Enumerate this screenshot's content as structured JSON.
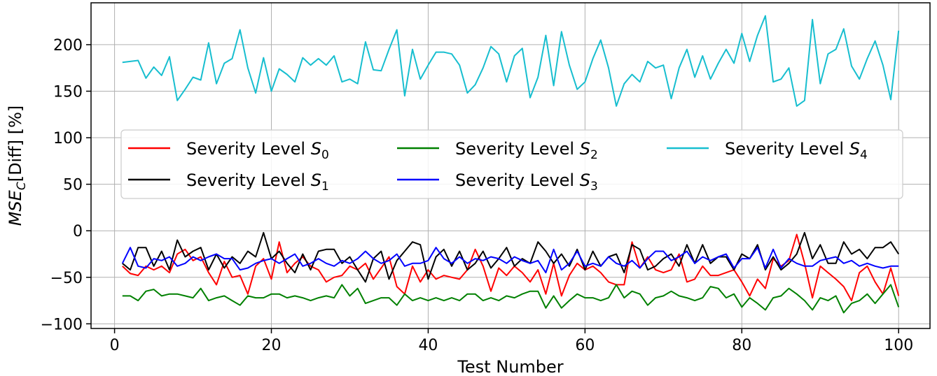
{
  "chart_data": {
    "type": "line",
    "title": "",
    "xlabel": "Test Number",
    "ylabel": {
      "base": "MSE",
      "subscript": "C",
      "suffix": "[Diff] [%]"
    },
    "xlim": [
      -3,
      104
    ],
    "ylim": [
      -105,
      245
    ],
    "xticks": [
      0,
      20,
      40,
      60,
      80,
      100
    ],
    "yticks": [
      -100,
      -50,
      0,
      50,
      100,
      150,
      200
    ],
    "x_tick_labels": [
      "0",
      "20",
      "40",
      "60",
      "80",
      "100"
    ],
    "y_tick_labels": [
      "−100",
      "−50",
      "0",
      "50",
      "100",
      "150",
      "200"
    ],
    "grid": true,
    "legend_position": "upper-middle",
    "x": [
      1,
      2,
      3,
      4,
      5,
      6,
      7,
      8,
      9,
      10,
      11,
      12,
      13,
      14,
      15,
      16,
      17,
      18,
      19,
      20,
      21,
      22,
      23,
      24,
      25,
      26,
      27,
      28,
      29,
      30,
      31,
      32,
      33,
      34,
      35,
      36,
      37,
      38,
      39,
      40,
      41,
      42,
      43,
      44,
      45,
      46,
      47,
      48,
      49,
      50,
      51,
      52,
      53,
      54,
      55,
      56,
      57,
      58,
      59,
      60,
      61,
      62,
      63,
      64,
      65,
      66,
      67,
      68,
      69,
      70,
      71,
      72,
      73,
      74,
      75,
      76,
      77,
      78,
      79,
      80,
      81,
      82,
      83,
      84,
      85,
      86,
      87,
      88,
      89,
      90,
      91,
      92,
      93,
      94,
      95,
      96,
      97,
      98,
      99,
      100
    ],
    "series": [
      {
        "name": "Severity Level",
        "subscript": "0",
        "color": "#ff0000",
        "values": [
          -38,
          -46,
          -48,
          -38,
          -42,
          -38,
          -45,
          -25,
          -20,
          -32,
          -28,
          -45,
          -58,
          -33,
          -50,
          -48,
          -68,
          -38,
          -30,
          -52,
          -12,
          -45,
          -35,
          -28,
          -38,
          -42,
          -55,
          -50,
          -48,
          -38,
          -42,
          -35,
          -52,
          -40,
          -28,
          -60,
          -68,
          -38,
          -55,
          -42,
          -52,
          -48,
          -50,
          -52,
          -42,
          -20,
          -38,
          -65,
          -40,
          -48,
          -38,
          -45,
          -55,
          -42,
          -68,
          -35,
          -70,
          -48,
          -35,
          -42,
          -38,
          -45,
          -55,
          -58,
          -58,
          -12,
          -40,
          -28,
          -42,
          -45,
          -42,
          -25,
          -55,
          -52,
          -38,
          -48,
          -48,
          -45,
          -42,
          -55,
          -70,
          -52,
          -62,
          -30,
          -38,
          -32,
          -4,
          -35,
          -72,
          -38,
          -45,
          -52,
          -60,
          -75,
          -45,
          -38,
          -55,
          -68,
          -40,
          -70
        ]
      },
      {
        "name": "Severity Level",
        "subscript": "1",
        "color": "#000000",
        "values": [
          -35,
          -42,
          -18,
          -18,
          -38,
          -22,
          -42,
          -10,
          -28,
          -22,
          -18,
          -42,
          -25,
          -40,
          -28,
          -35,
          -22,
          -28,
          -2,
          -30,
          -22,
          -35,
          -45,
          -25,
          -42,
          -22,
          -20,
          -20,
          -35,
          -28,
          -42,
          -55,
          -30,
          -22,
          -52,
          -32,
          -22,
          -12,
          -15,
          -52,
          -28,
          -20,
          -38,
          -22,
          -42,
          -35,
          -22,
          -40,
          -30,
          -18,
          -38,
          -30,
          -35,
          -12,
          -22,
          -35,
          -25,
          -38,
          -20,
          -42,
          -22,
          -38,
          -28,
          -25,
          -45,
          -15,
          -20,
          -42,
          -38,
          -30,
          -25,
          -38,
          -15,
          -35,
          -15,
          -35,
          -28,
          -28,
          -42,
          -25,
          -30,
          -15,
          -42,
          -28,
          -42,
          -35,
          -25,
          -2,
          -30,
          -15,
          -35,
          -35,
          -12,
          -25,
          -20,
          -30,
          -18,
          -18,
          -12,
          -25
        ]
      },
      {
        "name": "Severity Level",
        "subscript": "2",
        "color": "#008000",
        "values": [
          -70,
          -70,
          -75,
          -65,
          -63,
          -70,
          -68,
          -68,
          -70,
          -72,
          -62,
          -75,
          -72,
          -70,
          -75,
          -80,
          -70,
          -72,
          -72,
          -68,
          -68,
          -72,
          -70,
          -72,
          -75,
          -72,
          -70,
          -72,
          -58,
          -70,
          -62,
          -78,
          -75,
          -72,
          -72,
          -80,
          -68,
          -75,
          -72,
          -75,
          -72,
          -75,
          -72,
          -75,
          -68,
          -68,
          -75,
          -72,
          -75,
          -70,
          -72,
          -68,
          -65,
          -65,
          -83,
          -70,
          -83,
          -75,
          -68,
          -72,
          -72,
          -75,
          -72,
          -58,
          -72,
          -65,
          -68,
          -80,
          -72,
          -70,
          -65,
          -70,
          -72,
          -75,
          -72,
          -60,
          -62,
          -72,
          -68,
          -82,
          -72,
          -78,
          -85,
          -72,
          -70,
          -62,
          -68,
          -75,
          -85,
          -72,
          -75,
          -70,
          -88,
          -78,
          -75,
          -68,
          -78,
          -68,
          -58,
          -82
        ]
      },
      {
        "name": "Severity Level",
        "subscript": "3",
        "color": "#0000ff",
        "values": [
          -35,
          -18,
          -38,
          -40,
          -30,
          -32,
          -28,
          -38,
          -35,
          -28,
          -32,
          -28,
          -25,
          -30,
          -30,
          -42,
          -40,
          -35,
          -32,
          -30,
          -35,
          -30,
          -25,
          -38,
          -35,
          -30,
          -35,
          -38,
          -32,
          -35,
          -30,
          -22,
          -30,
          -35,
          -32,
          -25,
          -38,
          -35,
          -35,
          -32,
          -18,
          -30,
          -35,
          -28,
          -35,
          -30,
          -32,
          -28,
          -30,
          -35,
          -28,
          -32,
          -35,
          -32,
          -45,
          -20,
          -42,
          -35,
          -22,
          -38,
          -35,
          -38,
          -28,
          -35,
          -38,
          -32,
          -40,
          -30,
          -22,
          -22,
          -32,
          -28,
          -22,
          -35,
          -28,
          -32,
          -28,
          -25,
          -40,
          -30,
          -30,
          -18,
          -40,
          -20,
          -40,
          -30,
          -35,
          -38,
          -38,
          -32,
          -30,
          -28,
          -35,
          -32,
          -38,
          -35,
          -38,
          -40,
          -38,
          -38
        ]
      },
      {
        "name": "Severity Level",
        "subscript": "4",
        "color": "#17becf",
        "values": [
          181,
          182,
          183,
          164,
          176,
          167,
          187,
          140,
          152,
          165,
          162,
          202,
          158,
          180,
          185,
          216,
          175,
          148,
          186,
          150,
          174,
          168,
          160,
          186,
          178,
          185,
          178,
          188,
          160,
          163,
          158,
          203,
          173,
          172,
          195,
          216,
          145,
          195,
          163,
          178,
          192,
          192,
          190,
          178,
          148,
          157,
          175,
          198,
          190,
          160,
          188,
          196,
          143,
          165,
          210,
          156,
          214,
          178,
          152,
          160,
          185,
          205,
          175,
          134,
          158,
          168,
          160,
          182,
          175,
          178,
          142,
          175,
          195,
          165,
          188,
          163,
          180,
          195,
          180,
          212,
          182,
          210,
          231,
          160,
          163,
          175,
          134,
          140,
          227,
          158,
          190,
          195,
          217,
          177,
          163,
          185,
          204,
          178,
          141,
          215
        ]
      }
    ]
  }
}
